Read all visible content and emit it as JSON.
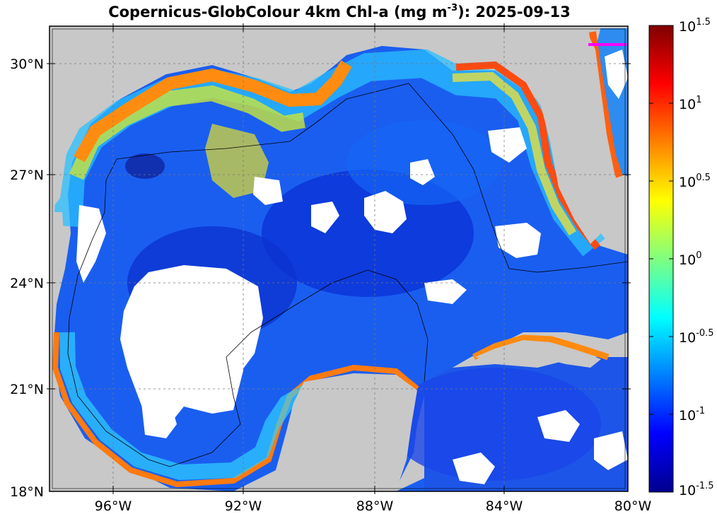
{
  "title": {
    "prefix": "Copernicus-GlobColour 4km Chl-a (mg m",
    "exponent": "-3",
    "suffix": "): 2025-09-13"
  },
  "map": {
    "lon_range": [
      -98,
      -80
    ],
    "lat_range": [
      18,
      31
    ],
    "grid": true,
    "land_color": "#c8c8c8",
    "nodata_color": "#ffffff",
    "lat_ticks": [
      {
        "value": 30,
        "label": "30°N"
      },
      {
        "value": 27,
        "label": "27°N"
      },
      {
        "value": 24,
        "label": "24°N"
      },
      {
        "value": 21,
        "label": "21°N"
      },
      {
        "value": 18,
        "label": "18°N"
      }
    ],
    "lon_ticks": [
      {
        "value": -96,
        "label": "96°W"
      },
      {
        "value": -92,
        "label": "92°W"
      },
      {
        "value": -88,
        "label": "88°W"
      },
      {
        "value": -84,
        "label": "84°W"
      },
      {
        "value": -80,
        "label": "80°W"
      }
    ],
    "marker_color": "#ff00ff"
  },
  "colorbar": {
    "scale": "log10",
    "range": [
      -1.5,
      1.5
    ],
    "colormap": "jet",
    "ticks": [
      {
        "value": 1.5,
        "base": "10",
        "exp": "1.5"
      },
      {
        "value": 1.0,
        "base": "10",
        "exp": "1"
      },
      {
        "value": 0.5,
        "base": "10",
        "exp": "0.5"
      },
      {
        "value": 0.0,
        "base": "10",
        "exp": "0"
      },
      {
        "value": -0.5,
        "base": "10",
        "exp": "-0.5"
      },
      {
        "value": -1.0,
        "base": "10",
        "exp": "-1"
      },
      {
        "value": -1.5,
        "base": "10",
        "exp": "-1.5"
      }
    ]
  }
}
